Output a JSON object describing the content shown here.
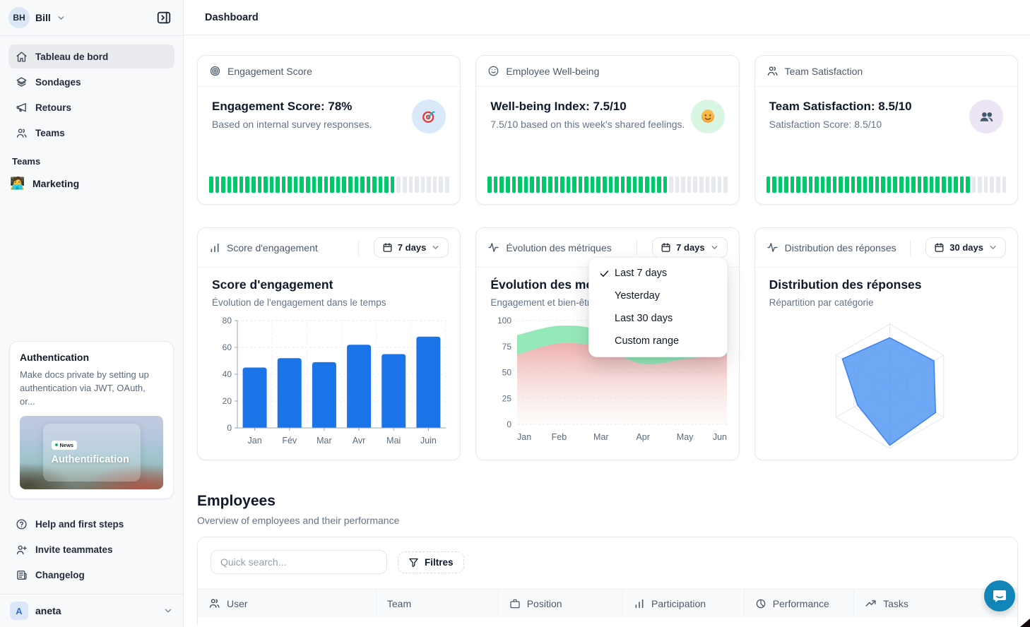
{
  "accent_colors": {
    "green": "#00c96b",
    "segment_gray": "#e6e9ee",
    "bar_blue": "#1b74e8",
    "radar_blue": "#4e94f1"
  },
  "sidebar": {
    "user": {
      "initials": "BH",
      "name": "Bill"
    },
    "nav": [
      {
        "label": "Tableau de bord",
        "icon": "home-icon",
        "active": true
      },
      {
        "label": "Sondages",
        "icon": "layers-icon",
        "active": false
      },
      {
        "label": "Retours",
        "icon": "megaphone-icon",
        "active": false
      },
      {
        "label": "Teams",
        "icon": "users-icon",
        "active": false
      }
    ],
    "teams_section": {
      "label": "Teams",
      "items": [
        {
          "label": "Marketing",
          "emoji": "🧑‍💻"
        }
      ]
    },
    "promo": {
      "title": "Authentication",
      "description": "Make docs private by setting up authentication via JWT, OAuth, or...",
      "badge": "News",
      "image_caption": "Authentification"
    },
    "footer_nav": [
      {
        "label": "Help and first steps",
        "icon": "help-icon"
      },
      {
        "label": "Invite teammates",
        "icon": "user-plus-icon"
      },
      {
        "label": "Changelog",
        "icon": "changelog-icon"
      }
    ],
    "workspace": {
      "initial": "A",
      "name": "aneta"
    }
  },
  "header": {
    "title": "Dashboard"
  },
  "stat_cards": [
    {
      "header": "Engagement Score",
      "header_icon": "target-icon",
      "title": "Engagement Score: 78%",
      "subtitle": "Based on internal survey responses.",
      "emoji": "target",
      "emoji_bg": "#d9e9f9",
      "progress_percent": 78
    },
    {
      "header": "Employee Well-being",
      "header_icon": "smile-icon",
      "title": "Well-being Index: 7.5/10",
      "subtitle": "7.5/10 based on this week's shared feelings.",
      "emoji": "smile",
      "emoji_bg": "#d9f6e3",
      "progress_percent": 75
    },
    {
      "header": "Team Satisfaction",
      "header_icon": "users-icon",
      "title": "Team Satisfaction: 8.5/10",
      "subtitle": "Satisfaction Score: 8.5/10",
      "emoji": "people",
      "emoji_bg": "#ece5f6",
      "progress_percent": 85
    }
  ],
  "chart_cards": [
    {
      "header": "Score d'engagement",
      "header_icon": "bar-chart-icon",
      "range_label": "7 days",
      "title": "Score d'engagement",
      "subtitle": "Évolution de l'engagement dans le temps"
    },
    {
      "header": "Évolution des métriques",
      "header_icon": "activity-icon",
      "range_label": "7 days",
      "title": "Évolution des métriques",
      "subtitle": "Engagement et bien-être"
    },
    {
      "header": "Distribution des réponses",
      "header_icon": "activity-icon",
      "range_label": "30 days",
      "title": "Distribution des réponses",
      "subtitle": "Répartition par catégorie"
    }
  ],
  "chart_data": [
    {
      "type": "bar",
      "title": "Score d'engagement",
      "xlabel": "",
      "ylabel": "",
      "categories": [
        "Jan",
        "Fév",
        "Mar",
        "Avr",
        "Mai",
        "Juin"
      ],
      "values": [
        45,
        52,
        49,
        62,
        55,
        68
      ],
      "ylim": [
        0,
        80
      ],
      "yticks": [
        0,
        20,
        40,
        60,
        80
      ],
      "grid": true,
      "color": "#1b74e8"
    },
    {
      "type": "area",
      "title": "Évolution des métriques",
      "x": [
        "Jan",
        "Feb",
        "Mar",
        "Apr",
        "May",
        "Jun"
      ],
      "series": [
        {
          "name": "engagement",
          "values": [
            86,
            95,
            90,
            66,
            74,
            80
          ],
          "color": "#8fe8b5"
        },
        {
          "name": "bien-être",
          "values": [
            67,
            78,
            74,
            58,
            63,
            68
          ],
          "color": "#efa5a5"
        }
      ],
      "ylim": [
        0,
        100
      ],
      "yticks": [
        0,
        25,
        50,
        75,
        100
      ],
      "grid": true,
      "legend_position": "none"
    },
    {
      "type": "radar",
      "title": "Distribution des réponses",
      "axes_count": 6,
      "levels": 3,
      "values_fraction": [
        0.78,
        0.82,
        0.85,
        0.95,
        0.6,
        0.88
      ],
      "fill": "#4e94f1",
      "stroke": "#3b82f6",
      "grid_color": "#e3e8ef"
    }
  ],
  "dropdown_menu": {
    "items": [
      {
        "label": "Last 7 days",
        "checked": true
      },
      {
        "label": "Yesterday",
        "checked": false
      },
      {
        "label": "Last 30 days",
        "checked": false
      },
      {
        "label": "Custom range",
        "checked": false
      }
    ]
  },
  "employees": {
    "title": "Employees",
    "subtitle": "Overview of employees and their performance",
    "search_placeholder": "Quick search...",
    "filters_label": "Filtres",
    "columns": [
      {
        "label": "User",
        "icon": "users-icon",
        "width": "21.8%"
      },
      {
        "label": "Team",
        "icon": "",
        "width": "14.9%"
      },
      {
        "label": "Position",
        "icon": "briefcase-icon",
        "width": "15.2%"
      },
      {
        "label": "Participation",
        "icon": "bar-chart-icon",
        "width": "14.8%"
      },
      {
        "label": "Performance",
        "icon": "pie-icon",
        "width": "13.4%"
      },
      {
        "label": "Tasks",
        "icon": "trend-up-icon",
        "width": "19.9%"
      }
    ]
  }
}
